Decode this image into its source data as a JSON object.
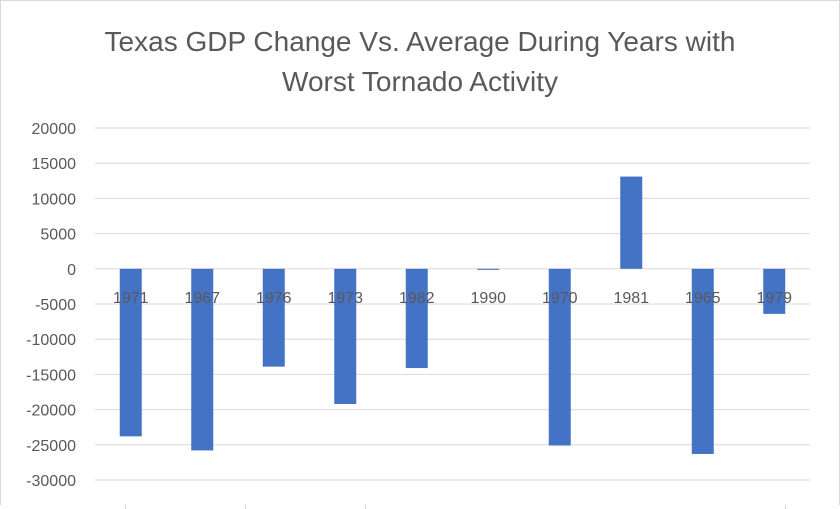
{
  "chart_data": {
    "type": "bar",
    "title_lines": [
      "Texas GDP Change Vs. Average During Years with",
      "Worst Tornado Activity"
    ],
    "categories": [
      "1971",
      "1967",
      "1976",
      "1973",
      "1982",
      "1990",
      "1970",
      "1981",
      "1965",
      "1979"
    ],
    "values": [
      -23800,
      -25800,
      -13900,
      -19200,
      -14100,
      -150,
      -25100,
      13100,
      -26300,
      -6400
    ],
    "ylim": [
      -30000,
      20000
    ],
    "yticks": [
      20000,
      15000,
      10000,
      5000,
      0,
      -5000,
      -10000,
      -15000,
      -20000,
      -25000,
      -30000
    ],
    "grid": true,
    "legend": "none",
    "bar_color": "#4472C4",
    "gridline_color": "#d9d9d9",
    "xlabel": "",
    "ylabel": ""
  }
}
